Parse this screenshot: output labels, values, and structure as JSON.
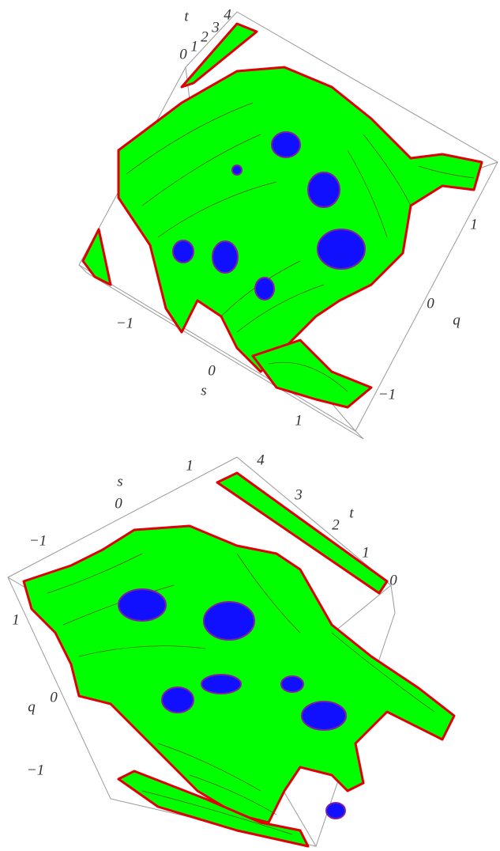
{
  "panels": [
    {
      "axes": [
        {
          "label": "t",
          "ticks": [
            "0",
            "1",
            "2",
            "3",
            "4"
          ]
        },
        {
          "label": "q",
          "ticks": [
            "1",
            "0",
            "−1"
          ]
        },
        {
          "label": "s",
          "ticks": [
            "−1",
            "0",
            "1"
          ]
        }
      ]
    },
    {
      "axes": [
        {
          "label": "s",
          "ticks": [
            "1",
            "0",
            "−1"
          ]
        },
        {
          "label": "t",
          "ticks": [
            "4",
            "3",
            "2",
            "1",
            "0"
          ]
        },
        {
          "label": "q",
          "ticks": [
            "1",
            "0",
            "−1"
          ]
        }
      ]
    }
  ]
}
